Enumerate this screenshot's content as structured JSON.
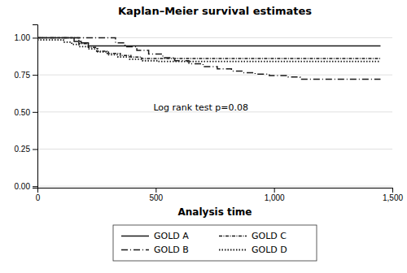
{
  "chart_data": {
    "type": "step",
    "title": "Kaplan–Meier survival estimates",
    "x_label": "Analysis time",
    "xlim": [
      0,
      1500
    ],
    "ylim": [
      -0.01,
      1.09
    ],
    "xticks": [
      0,
      500,
      {
        "value": 1000,
        "label": "1,000"
      },
      {
        "value": 1500,
        "label": "1,500"
      }
    ],
    "yticks": [
      {
        "value": 0.0,
        "label": "0.00"
      },
      {
        "value": 0.25,
        "label": "0.25"
      },
      {
        "value": 0.5,
        "label": "0.50"
      },
      {
        "value": 0.75,
        "label": "0.75"
      },
      {
        "value": 1.0,
        "label": "1.00"
      }
    ],
    "grid": true,
    "legend": "bottom",
    "series": [
      {
        "name": "GOLD A",
        "color": "#1a1a1a",
        "line_style": "solid",
        "x": [
          0,
          130,
          155,
          185,
          215,
          1450
        ],
        "values": [
          1.0,
          1.0,
          0.975,
          0.965,
          0.945,
          0.945
        ]
      },
      {
        "name": "GOLD B",
        "color": "#1a1a1a",
        "line_style": "longdashdot",
        "x": [
          0,
          290,
          330,
          370,
          420,
          470,
          530,
          580,
          640,
          700,
          760,
          820,
          870,
          920,
          980,
          1060,
          1110,
          1450
        ],
        "values": [
          1.0,
          1.0,
          0.965,
          0.94,
          0.915,
          0.89,
          0.865,
          0.845,
          0.825,
          0.805,
          0.79,
          0.775,
          0.765,
          0.755,
          0.745,
          0.735,
          0.72,
          0.72
        ]
      },
      {
        "name": "GOLD C",
        "color": "#1a1a1a",
        "line_style": "dashdot",
        "x": [
          0,
          140,
          175,
          215,
          250,
          300,
          350,
          395,
          440,
          1450
        ],
        "values": [
          1.0,
          1.0,
          0.96,
          0.935,
          0.91,
          0.895,
          0.88,
          0.87,
          0.86,
          0.86
        ]
      },
      {
        "name": "GOLD D",
        "color": "#1a1a1a",
        "line_style": "dotted",
        "x": [
          0,
          85,
          110,
          145,
          175,
          215,
          255,
          295,
          340,
          390,
          445,
          510,
          570,
          640,
          1450
        ],
        "values": [
          0.985,
          0.985,
          0.97,
          0.955,
          0.94,
          0.925,
          0.905,
          0.885,
          0.87,
          0.855,
          0.845,
          0.84,
          0.84,
          0.84,
          0.84
        ]
      }
    ],
    "annotations": [
      {
        "text": "Log rank test p=0.08",
        "x": 490,
        "y": 0.525
      }
    ]
  }
}
